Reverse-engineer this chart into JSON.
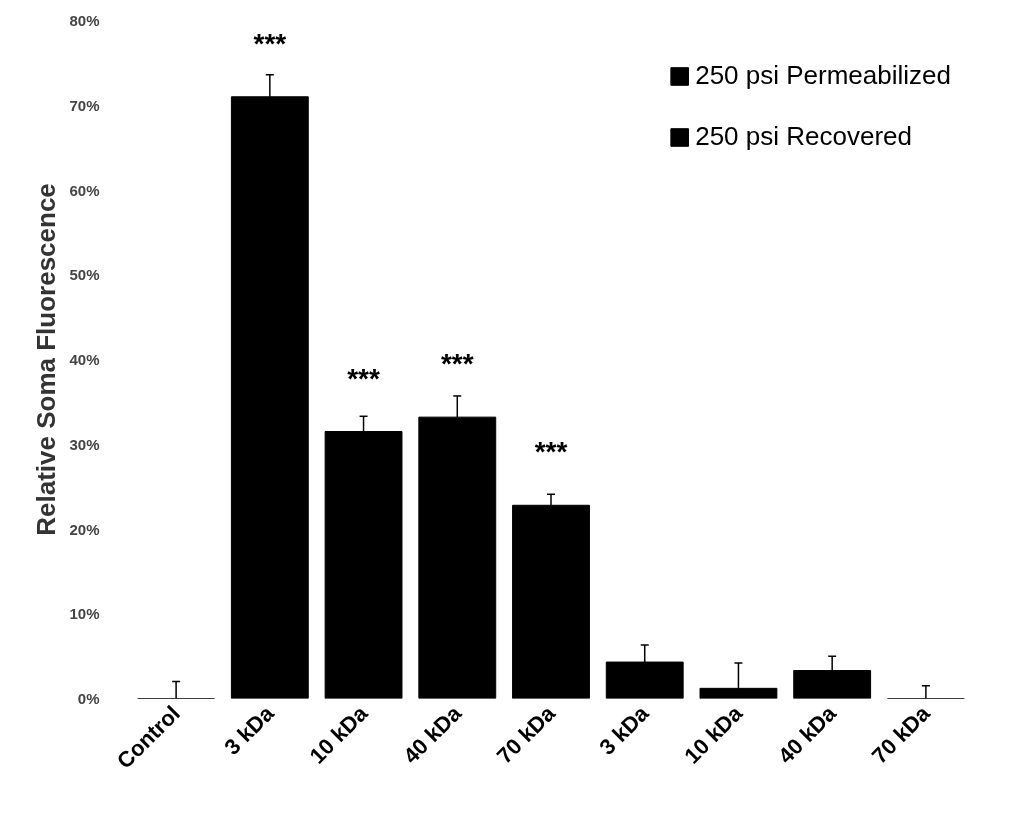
{
  "chart_data": {
    "type": "bar",
    "ylabel": "Relative Soma Fluorescence",
    "categories": [
      "Control",
      "3 kDa",
      "10 kDa",
      "40 kDa",
      "70 kDa",
      "3 kDa",
      "10 kDa",
      "40 kDa",
      "70 kDa"
    ],
    "series": [
      {
        "name": "250 psi Permeabilized",
        "color": "#000000",
        "values": [
          0,
          71.0,
          31.5,
          33.2,
          22.8,
          null,
          null,
          null,
          null
        ],
        "errors": [
          2.0,
          2.6,
          1.8,
          2.5,
          1.3,
          null,
          null,
          null,
          null
        ]
      },
      {
        "name": "250 psi Recovered",
        "color": "#000000",
        "values": [
          null,
          null,
          null,
          null,
          null,
          4.3,
          1.2,
          3.3,
          0
        ],
        "errors": [
          null,
          null,
          null,
          null,
          null,
          2.0,
          3.0,
          1.7,
          1.5
        ]
      }
    ],
    "ylim": [
      0,
      80
    ],
    "yticks": [
      {
        "value": 0,
        "label": "0%"
      },
      {
        "value": 10,
        "label": "10%"
      },
      {
        "value": 20,
        "label": "20%"
      },
      {
        "value": 30,
        "label": "30%"
      },
      {
        "value": 40,
        "label": "40%"
      },
      {
        "value": 50,
        "label": "50%"
      },
      {
        "value": 60,
        "label": "60%"
      },
      {
        "value": 70,
        "label": "70%"
      },
      {
        "value": 80,
        "label": "80%"
      }
    ],
    "annotations": [
      {
        "text": "***",
        "x": "3 kDa",
        "y": 71.0
      },
      {
        "text": "***",
        "x": "10 kDa",
        "y": 31.5
      },
      {
        "text": "***",
        "x": "40 kDa",
        "y": 33.2
      },
      {
        "text": "***",
        "x": "70 kDa",
        "y": 22.8
      }
    ],
    "grid": false,
    "legend": "top right"
  }
}
